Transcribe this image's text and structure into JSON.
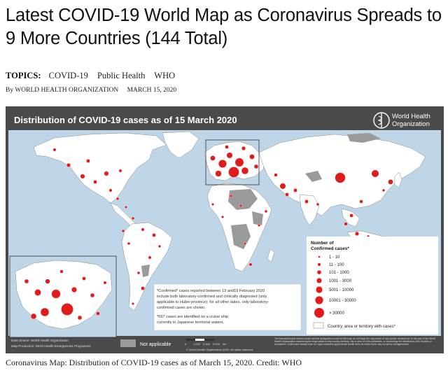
{
  "article": {
    "title": "Latest COVID-19 World Map as Coronavirus Spreads to 9 More Countries (144 Total)",
    "topics_label": "TOPICS:",
    "topics": [
      "COVID-19",
      "Public Health",
      "WHO"
    ],
    "byline": "By WORLD HEALTH ORGANIZATION",
    "date": "MARCH 15, 2020",
    "caption": "Coronavirus Map: Distribution of COVID-19 cases as of March 15, 2020. Credit: WHO"
  },
  "map": {
    "title": "Distribution of COVID-19  cases as of 15 March 2020",
    "org_name_line1": "World Health",
    "org_name_line2": "Organization",
    "legend": {
      "title_line1": "Number of",
      "title_line2": "Confirmed cases*",
      "items": [
        "1 - 10",
        "11 - 100",
        "101 - 1000",
        "1001 - 3000",
        "5001 - 10000",
        "10001 - 30000",
        "> 30000"
      ],
      "no_cases": "Country, area or territory with cases*"
    },
    "note_lines": [
      "*Confirmed* cases reported between 13 and19 February 2020",
      "include both laboratory-confirmed and clinically diagnosed (only",
      "applicable to Hubei province); for all other dates, only laboratory-",
      "confirmed cases are shown."
    ],
    "ship_lines": [
      "*697 cases are identified on a cruise ship",
      "currently in Japanese territorial waters."
    ],
    "not_applicable": "Not applicable",
    "data_source": "Data Source: World Health Organization",
    "map_production": "Map Production: WHO Health Emergencies Programme",
    "scale": [
      "0",
      "1,000",
      "2,000",
      "3,000",
      "km"
    ],
    "copyright": "© World Health Organization 2020. All rights reserved.",
    "disclaimer": "The boundaries and names shown and the designations used on this map do not imply the expression of any opinion whatsoever on the part of the World Health Organization concerning the legal status of any country, territory, city or area or of its authorities, or concerning the delimitation of its frontiers or boundaries. Dotted and dashed lines on maps represent approximate border lines for which there may not yet be full agreement.",
    "colors": {
      "ocean": "#bfd6e8",
      "land": "#ffffff",
      "no_case": "#9a9a9a",
      "bubble": "#e01b1b",
      "frame": "#4a4a4a"
    }
  }
}
